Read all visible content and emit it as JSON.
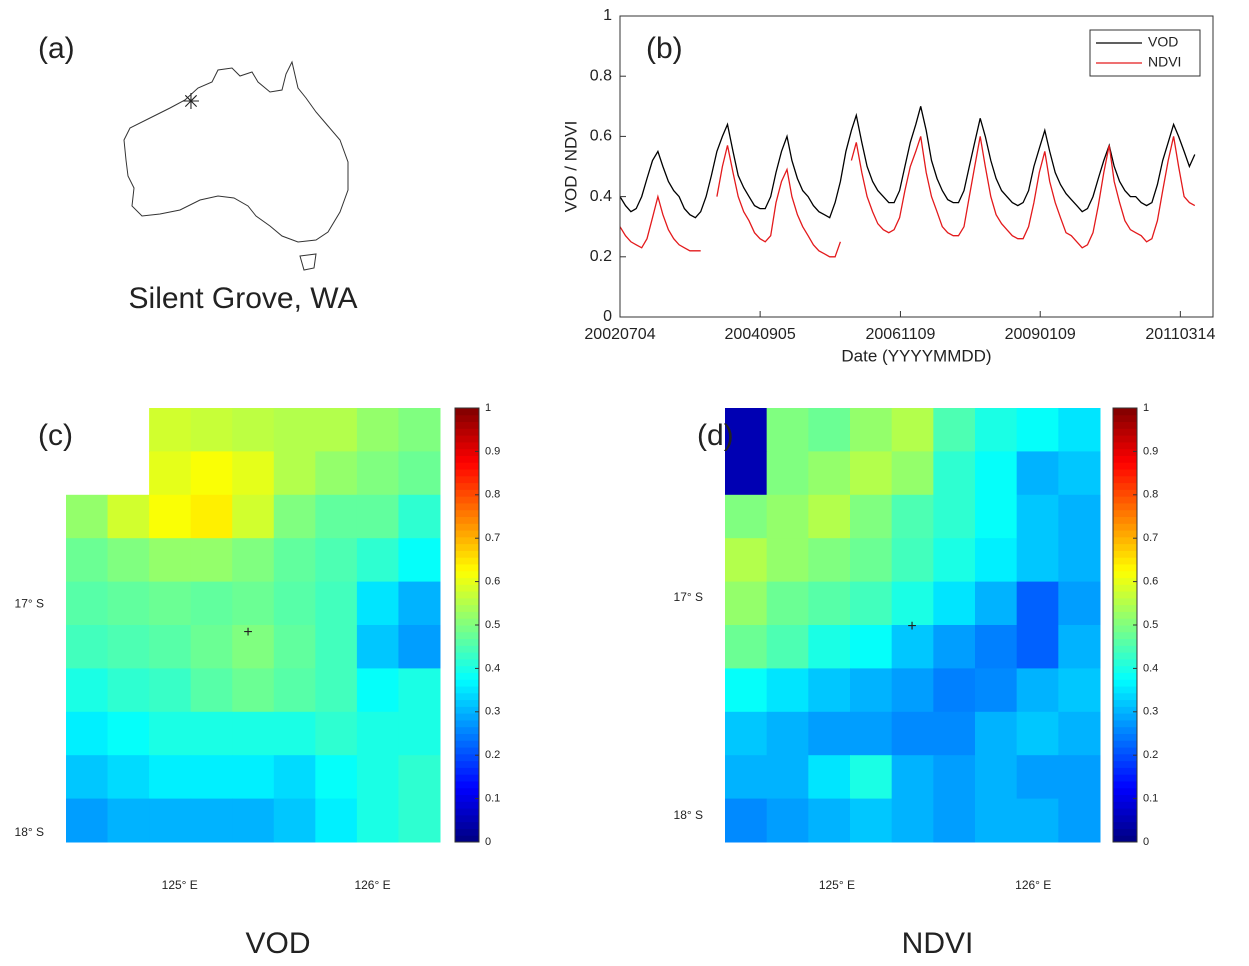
{
  "panel_a": {
    "panel_label": "(a)",
    "caption": "Silent Grove, WA"
  },
  "chart_data": [
    {
      "type": "line",
      "panel_label": "(b)",
      "x_label": "Date (YYYYMMDD)",
      "y_label": "VOD / NDVI",
      "x": [
        "20020704",
        "20020804",
        "20020904",
        "20021004",
        "20021104",
        "20021204",
        "20030104",
        "20030204",
        "20030304",
        "20030404",
        "20030504",
        "20030604",
        "20030704",
        "20030804",
        "20030904",
        "20031004",
        "20031104",
        "20031204",
        "20040104",
        "20040204",
        "20040304",
        "20040404",
        "20040504",
        "20040604",
        "20040704",
        "20040804",
        "20040904",
        "20041004",
        "20041104",
        "20041204",
        "20050104",
        "20050204",
        "20050304",
        "20050404",
        "20050504",
        "20050604",
        "20050704",
        "20050804",
        "20050904",
        "20051004",
        "20051104",
        "20051204",
        "20060104",
        "20060204",
        "20060304",
        "20060404",
        "20060504",
        "20060604",
        "20060704",
        "20060804",
        "20060904",
        "20061004",
        "20061104",
        "20061204",
        "20070104",
        "20070204",
        "20070304",
        "20070404",
        "20070504",
        "20070604",
        "20070704",
        "20070804",
        "20070904",
        "20071004",
        "20071104",
        "20071204",
        "20080104",
        "20080204",
        "20080304",
        "20080404",
        "20080504",
        "20080604",
        "20080704",
        "20080804",
        "20080904",
        "20081004",
        "20081104",
        "20081204",
        "20090104",
        "20090204",
        "20090304",
        "20090404",
        "20090504",
        "20090604",
        "20090704",
        "20090804",
        "20090904",
        "20091004",
        "20091104",
        "20091204",
        "20100104",
        "20100204",
        "20100304",
        "20100404",
        "20100504",
        "20100604",
        "20100704",
        "20100804",
        "20100904",
        "20101004",
        "20101104",
        "20101204",
        "20110104",
        "20110204",
        "20110304",
        "20110404",
        "20110504",
        "20110604"
      ],
      "series": [
        {
          "name": "VOD",
          "color": "#000000",
          "values": [
            0.4,
            0.37,
            0.35,
            0.36,
            0.4,
            0.46,
            0.52,
            0.55,
            0.5,
            0.45,
            0.42,
            0.4,
            0.36,
            0.34,
            0.33,
            0.35,
            0.4,
            0.47,
            0.55,
            0.6,
            0.64,
            0.55,
            0.47,
            0.43,
            0.4,
            0.37,
            0.36,
            0.36,
            0.4,
            0.48,
            0.55,
            0.6,
            0.52,
            0.46,
            0.42,
            0.4,
            0.37,
            0.35,
            0.34,
            0.33,
            0.38,
            0.45,
            0.55,
            0.62,
            0.67,
            0.58,
            0.5,
            0.45,
            0.42,
            0.4,
            0.38,
            0.38,
            0.42,
            0.5,
            0.58,
            0.64,
            0.7,
            0.62,
            0.52,
            0.46,
            0.42,
            0.39,
            0.38,
            0.38,
            0.42,
            0.5,
            0.58,
            0.66,
            0.6,
            0.52,
            0.46,
            0.42,
            0.4,
            0.38,
            0.37,
            0.38,
            0.42,
            0.5,
            0.56,
            0.62,
            0.55,
            0.48,
            0.44,
            0.41,
            0.39,
            0.37,
            0.35,
            0.36,
            0.4,
            0.46,
            0.52,
            0.57,
            0.5,
            0.45,
            0.42,
            0.4,
            0.4,
            0.38,
            0.37,
            0.38,
            0.44,
            0.52,
            0.58,
            0.64,
            0.6,
            0.55,
            0.5,
            0.54
          ]
        },
        {
          "name": "NDVI",
          "color": "#e31a1c",
          "values": [
            0.3,
            0.27,
            0.25,
            0.24,
            0.23,
            0.26,
            0.33,
            0.4,
            0.34,
            0.29,
            0.26,
            0.24,
            0.23,
            0.22,
            0.22,
            0.22,
            null,
            null,
            0.4,
            0.5,
            0.57,
            0.48,
            0.4,
            0.35,
            0.32,
            0.28,
            0.26,
            0.25,
            0.27,
            0.38,
            0.45,
            0.49,
            0.4,
            0.34,
            0.3,
            0.27,
            0.24,
            0.22,
            0.21,
            0.2,
            0.2,
            0.25,
            null,
            0.52,
            0.58,
            0.48,
            0.4,
            0.35,
            0.31,
            0.29,
            0.28,
            0.29,
            0.33,
            0.42,
            0.5,
            0.55,
            0.6,
            0.48,
            0.4,
            0.35,
            0.3,
            0.28,
            0.27,
            0.27,
            0.3,
            0.4,
            0.5,
            0.6,
            0.5,
            0.4,
            0.34,
            0.31,
            0.29,
            0.27,
            0.26,
            0.26,
            0.3,
            0.38,
            0.48,
            0.55,
            0.45,
            0.38,
            0.33,
            0.28,
            0.27,
            0.25,
            0.23,
            0.24,
            0.28,
            0.37,
            0.48,
            0.57,
            0.45,
            0.38,
            0.32,
            0.29,
            0.28,
            0.27,
            0.25,
            0.26,
            0.32,
            0.42,
            0.52,
            0.6,
            0.5,
            0.4,
            0.38,
            0.37
          ]
        }
      ],
      "xlim": [
        "20020704",
        "20110915"
      ],
      "xticks": [
        "20020704",
        "20040905",
        "20061109",
        "20090109",
        "20110314"
      ],
      "ylim": [
        0,
        1
      ],
      "yticks": [
        0,
        0.2,
        0.4,
        0.6,
        0.8,
        1
      ],
      "legend": "upper right",
      "grid": false
    },
    {
      "type": "heatmap",
      "panel_label": "(c)",
      "caption": "VOD",
      "colormap": "jet",
      "clim": [
        0,
        1
      ],
      "cbar_ticks": [
        0,
        0.1,
        0.2,
        0.3,
        0.4,
        0.5,
        0.6,
        0.7,
        0.8,
        0.9,
        1
      ],
      "xlim": [
        124.41,
        126.35
      ],
      "ylim": [
        -18.04,
        -16.14
      ],
      "xticks": [
        {
          "value": 125,
          "label": "125° E"
        },
        {
          "value": 126,
          "label": "126° E"
        }
      ],
      "yticks": [
        {
          "value": -17,
          "label": "17° S"
        },
        {
          "value": -18,
          "label": "18° S"
        }
      ],
      "values": [
        [
          null,
          null,
          0.58,
          0.57,
          0.56,
          0.55,
          0.55,
          0.52,
          0.5
        ],
        [
          null,
          null,
          0.6,
          0.62,
          0.6,
          0.55,
          0.52,
          0.5,
          0.48
        ],
        [
          0.52,
          0.58,
          0.62,
          0.64,
          0.58,
          0.5,
          0.47,
          0.47,
          0.42
        ],
        [
          0.48,
          0.5,
          0.52,
          0.52,
          0.5,
          0.47,
          0.45,
          0.42,
          0.38
        ],
        [
          0.46,
          0.47,
          0.48,
          0.47,
          0.48,
          0.46,
          0.44,
          0.35,
          0.3
        ],
        [
          0.44,
          0.45,
          0.46,
          0.48,
          0.5,
          0.47,
          0.44,
          0.32,
          0.28
        ],
        [
          0.4,
          0.42,
          0.43,
          0.46,
          0.48,
          0.46,
          0.44,
          0.38,
          0.4
        ],
        [
          0.36,
          0.38,
          0.4,
          0.4,
          0.4,
          0.4,
          0.42,
          0.4,
          0.4
        ],
        [
          0.32,
          0.34,
          0.36,
          0.36,
          0.36,
          0.34,
          0.38,
          0.4,
          0.42
        ],
        [
          0.28,
          0.3,
          0.3,
          0.3,
          0.3,
          0.32,
          0.36,
          0.4,
          0.42
        ]
      ]
    },
    {
      "type": "heatmap",
      "panel_label": "(d)",
      "caption": "NDVI",
      "colormap": "jet",
      "clim": [
        0,
        1
      ],
      "cbar_ticks": [
        0,
        0.1,
        0.2,
        0.3,
        0.4,
        0.5,
        0.6,
        0.7,
        0.8,
        0.9,
        1
      ],
      "xlim": [
        124.43,
        126.34
      ],
      "ylim": [
        -18.12,
        -16.13
      ],
      "xticks": [
        {
          "value": 125,
          "label": "125° E"
        },
        {
          "value": 126,
          "label": "126° E"
        }
      ],
      "yticks": [
        {
          "value": -17,
          "label": "17° S"
        },
        {
          "value": -18,
          "label": "18° S"
        }
      ],
      "values": [
        [
          0.05,
          0.5,
          0.48,
          0.52,
          0.55,
          0.45,
          0.4,
          0.38,
          0.35
        ],
        [
          0.05,
          0.5,
          0.52,
          0.55,
          0.52,
          0.42,
          0.38,
          0.3,
          0.32
        ],
        [
          0.5,
          0.52,
          0.55,
          0.5,
          0.45,
          0.42,
          0.38,
          0.32,
          0.3
        ],
        [
          0.55,
          0.52,
          0.5,
          0.48,
          0.44,
          0.4,
          0.36,
          0.32,
          0.3
        ],
        [
          0.52,
          0.48,
          0.46,
          0.44,
          0.4,
          0.35,
          0.3,
          0.22,
          0.28
        ],
        [
          0.48,
          0.45,
          0.4,
          0.38,
          0.32,
          0.28,
          0.25,
          0.22,
          0.3
        ],
        [
          0.38,
          0.35,
          0.32,
          0.3,
          0.28,
          0.25,
          0.26,
          0.3,
          0.32
        ],
        [
          0.32,
          0.3,
          0.28,
          0.28,
          0.26,
          0.26,
          0.3,
          0.32,
          0.3
        ],
        [
          0.3,
          0.3,
          0.35,
          0.4,
          0.3,
          0.28,
          0.3,
          0.28,
          0.28
        ],
        [
          0.26,
          0.28,
          0.3,
          0.32,
          0.3,
          0.28,
          0.3,
          0.3,
          0.28
        ]
      ]
    }
  ]
}
